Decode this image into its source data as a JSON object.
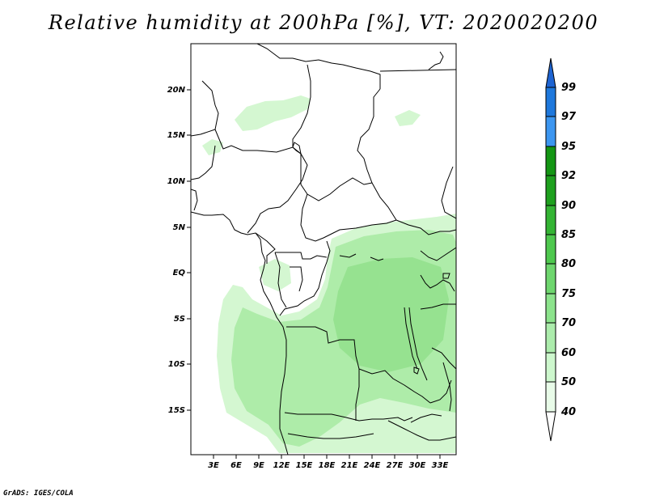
{
  "title": "Relative humidity at 200hPa [%], VT: 2020020200",
  "credit": "GrADS: IGES/COLA",
  "map": {
    "lat_labels": [
      "20N",
      "15N",
      "10N",
      "5N",
      "EQ",
      "5S",
      "10S",
      "15S"
    ],
    "lon_labels": [
      "3E",
      "6E",
      "9E",
      "12E",
      "15E",
      "18E",
      "21E",
      "24E",
      "27E",
      "30E",
      "33E"
    ]
  },
  "colorbar": {
    "labels": [
      "99",
      "97",
      "95",
      "92",
      "90",
      "85",
      "80",
      "75",
      "70",
      "60",
      "50",
      "40"
    ],
    "colors": [
      "#1e64d2",
      "#1e78dc",
      "#3c96f0",
      "#149614",
      "#1ea01e",
      "#34b434",
      "#4ec84e",
      "#6ed66e",
      "#8ce38c",
      "#acecac",
      "#cdf7cd",
      "#e8fbe8",
      "#ffffff"
    ]
  },
  "colors": {
    "fill_light": "#d4f7d1",
    "fill_mid": "#aeeca9",
    "fill_dark": "#96e290"
  }
}
